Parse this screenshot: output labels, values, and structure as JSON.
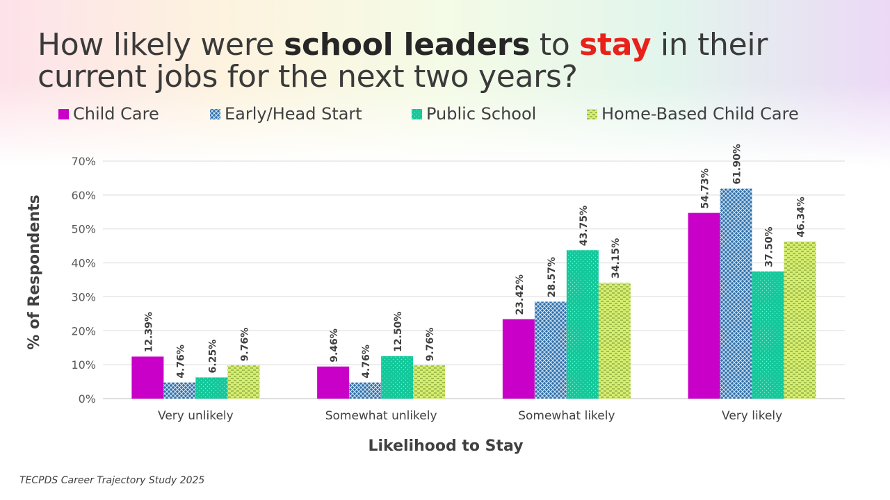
{
  "title": {
    "part1": "How likely were ",
    "part2": "school leaders",
    "part3": " to ",
    "part4": "stay",
    "part5": " in their current jobs for the next two years?"
  },
  "source": "TECPDS Career Trajectory Study 2025",
  "colors": {
    "child_care": "#c800c8",
    "early_head_start": "#2f6fa8",
    "public_school": "#12c89a",
    "home_based": "#d6ee70"
  },
  "chart_data": {
    "type": "bar",
    "categories": [
      "Very unlikely",
      "Somewhat unlikely",
      "Somewhat likely",
      "Very likely"
    ],
    "series": [
      {
        "name": "Child Care",
        "values": [
          12.39,
          9.46,
          23.42,
          54.73
        ],
        "labels": [
          "12.39%",
          "9.46%",
          "23.42%",
          "54.73%"
        ]
      },
      {
        "name": "Early/Head Start",
        "values": [
          4.76,
          4.76,
          28.57,
          61.9
        ],
        "labels": [
          "4.76%",
          "4.76%",
          "28.57%",
          "61.90%"
        ]
      },
      {
        "name": "Public School",
        "values": [
          6.25,
          12.5,
          43.75,
          37.5
        ],
        "labels": [
          "6.25%",
          "12.50%",
          "43.75%",
          "37.50%"
        ]
      },
      {
        "name": "Home-Based Child Care",
        "values": [
          9.76,
          9.76,
          34.15,
          46.34
        ],
        "labels": [
          "9.76%",
          "9.76%",
          "34.15%",
          "46.34%"
        ]
      }
    ],
    "xlabel": "Likelihood to Stay",
    "ylabel": "% of Respondents",
    "ylim": [
      0,
      70
    ],
    "yticks": [
      "0%",
      "10%",
      "20%",
      "30%",
      "40%",
      "50%",
      "60%",
      "70%"
    ],
    "grid": true,
    "legend": "top"
  }
}
